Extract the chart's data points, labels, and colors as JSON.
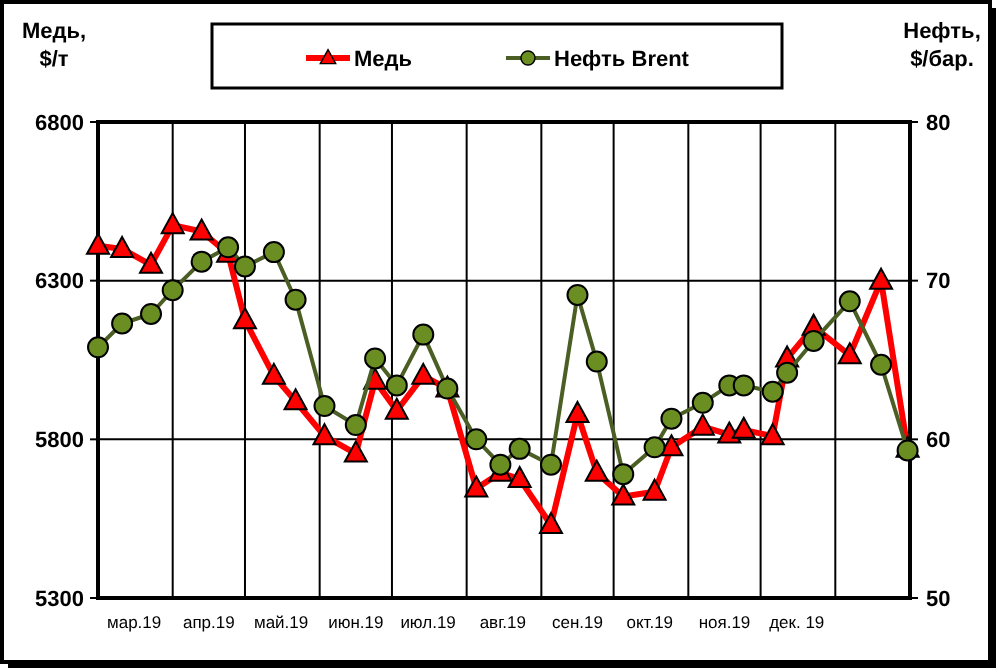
{
  "chart_data": {
    "type": "line",
    "ylabel": "Медь, $/т",
    "y2label": "Нефть, $/бар.",
    "x": [
      "2019-03-01",
      "2019-03-11",
      "2019-03-23",
      "2019-04-01",
      "2019-04-13",
      "2019-04-24",
      "2019-05-01",
      "2019-05-13",
      "2019-05-22",
      "2019-06-03",
      "2019-06-16",
      "2019-06-24",
      "2019-07-03",
      "2019-07-14",
      "2019-07-24",
      "2019-08-05",
      "2019-08-15",
      "2019-08-23",
      "2019-09-05",
      "2019-09-16",
      "2019-09-24",
      "2019-10-05",
      "2019-10-18",
      "2019-10-25",
      "2019-11-07",
      "2019-11-18",
      "2019-11-24",
      "2019-12-06",
      "2019-12-12",
      "2019-12-23",
      "2020-01-07",
      "2020-01-20",
      "2020-01-31"
    ],
    "series": [
      {
        "name": "Медь",
        "color": "#ff0000",
        "marker": "triangle",
        "values": [
          6410,
          6400,
          6350,
          6475,
          6455,
          6385,
          6175,
          6000,
          5920,
          5810,
          5755,
          5985,
          5890,
          6000,
          5960,
          5645,
          5695,
          5675,
          5530,
          5880,
          5695,
          5620,
          5635,
          5775,
          5840,
          5815,
          5830,
          5810,
          6055,
          6155,
          6065,
          6300,
          5770
        ]
      },
      {
        "name": "Нефть Brent",
        "color": "#4b5e23",
        "marker": "circle",
        "axis": "y2",
        "values": [
          65.8,
          67.3,
          67.9,
          69.4,
          71.2,
          72.1,
          70.9,
          71.8,
          68.8,
          62.1,
          60.9,
          65.1,
          63.4,
          66.6,
          63.2,
          60.0,
          58.4,
          59.4,
          58.4,
          69.1,
          64.9,
          57.8,
          59.5,
          61.3,
          62.3,
          63.4,
          63.4,
          63.0,
          64.2,
          66.2,
          68.7,
          64.7,
          59.3
        ]
      }
    ],
    "xlim": [
      "2019-03-01",
      "2020-02-01"
    ],
    "xticks": [
      {
        "value": "2019-03-16",
        "label": "мар.19"
      },
      {
        "value": "2019-04-01",
        "label": null
      },
      {
        "value": "2019-04-16",
        "label": "апр.19"
      },
      {
        "value": "2019-05-01",
        "label": null
      },
      {
        "value": "2019-05-16",
        "label": "май.19"
      },
      {
        "value": "2019-06-01",
        "label": null
      },
      {
        "value": "2019-06-16",
        "label": "июн.19"
      },
      {
        "value": "2019-07-01",
        "label": null
      },
      {
        "value": "2019-07-16",
        "label": "июл.19"
      },
      {
        "value": "2019-08-01",
        "label": null
      },
      {
        "value": "2019-08-16",
        "label": "авг.19"
      },
      {
        "value": "2019-09-01",
        "label": null
      },
      {
        "value": "2019-09-16",
        "label": "сен.19"
      },
      {
        "value": "2019-10-01",
        "label": null
      },
      {
        "value": "2019-10-16",
        "label": "окт.19"
      },
      {
        "value": "2019-11-01",
        "label": null
      },
      {
        "value": "2019-11-16",
        "label": "ноя.19"
      },
      {
        "value": "2019-12-01",
        "label": null
      },
      {
        "value": "2019-12-16",
        "label": "дек. 19"
      },
      {
        "value": "2020-01-01",
        "label": null
      }
    ],
    "ylim": [
      5300,
      6800
    ],
    "yticks": [
      5300,
      5800,
      6300,
      6800
    ],
    "y2lim": [
      50,
      80
    ],
    "y2ticks": [
      50,
      60,
      70,
      80
    ],
    "grid": true,
    "legend": "top",
    "line_style": "solid"
  }
}
